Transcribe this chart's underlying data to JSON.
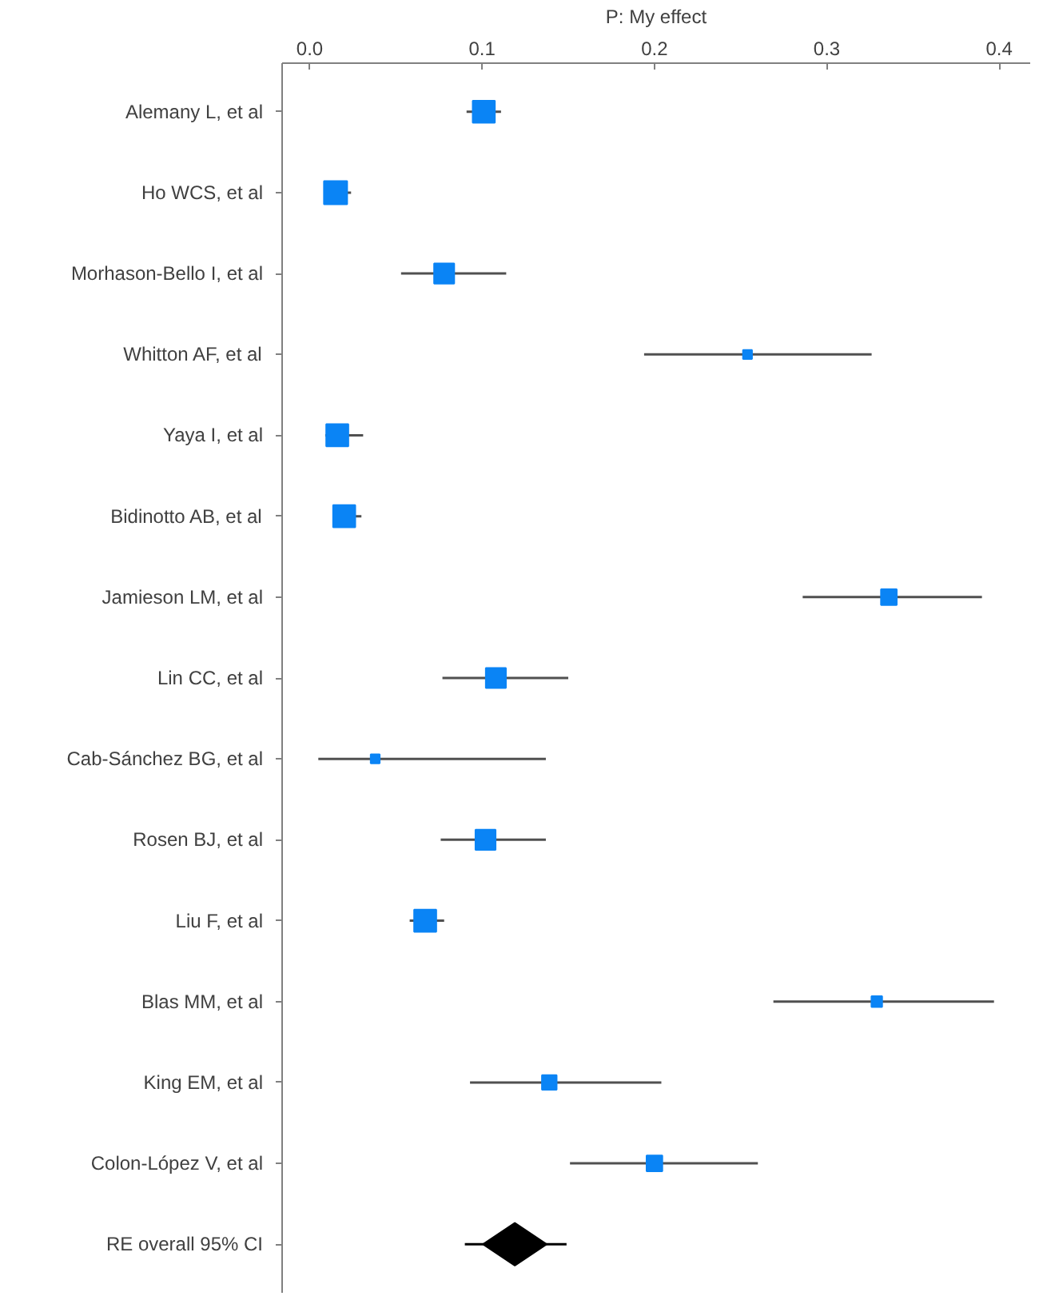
{
  "chart_data": {
    "type": "bubble",
    "orientation": "horizontal",
    "xlabel": "P: My effect",
    "categories": [
      "Alemany L, et al",
      "Ho WCS, et al",
      "Morhason-Bello I, et al",
      "Whitton AF, et al",
      "Yaya I, et al",
      "Bidinotto AB, et al",
      "Jamieson LM, et al",
      "Lin CC, et al",
      "Cab-Sánchez BG, et al",
      "Rosen BJ, et al",
      "Liu F, et al",
      "Blas MM, et al",
      "King EM, et al",
      "Colon-López V, et al",
      "RE overall 95% CI"
    ],
    "xlim": [
      -0.016,
      0.418
    ],
    "xticks": [
      {
        "value": 0,
        "label": "0.0"
      },
      0.1,
      0.2,
      0.3,
      0.4
    ],
    "grid": false,
    "marker": "square",
    "series": [
      {
        "color": "#0a84f5",
        "values": [
          0.101,
          0.015,
          0.078,
          0.254,
          0.016,
          0.02,
          0.336,
          0.108,
          0.038,
          0.102,
          0.067,
          0.329,
          0.139,
          0.2,
          null
        ],
        "sizes": [
          0.91,
          1,
          0.75,
          0.15,
          0.91,
          0.91,
          0.46,
          0.75,
          0.15,
          0.75,
          0.91,
          0.21,
          0.4,
          0.46,
          null
        ],
        "errors": [
          [
            0.091,
            0.111
          ],
          [
            0.009,
            0.024
          ],
          [
            0.053,
            0.114
          ],
          [
            0.194,
            0.326
          ],
          [
            0.009,
            0.031
          ],
          [
            0.014,
            0.03
          ],
          [
            0.286,
            0.39
          ],
          [
            0.077,
            0.15
          ],
          [
            0.005,
            0.137
          ],
          [
            0.076,
            0.137
          ],
          [
            0.058,
            0.078
          ],
          [
            0.269,
            0.397
          ],
          [
            0.093,
            0.204
          ],
          [
            0.151,
            0.26
          ],
          null
        ]
      },
      {
        "type": "scatter",
        "marker": "diamond",
        "color": "#000000",
        "values": [
          null,
          null,
          null,
          null,
          null,
          null,
          null,
          null,
          null,
          null,
          null,
          null,
          null,
          null,
          0.119
        ],
        "errors": [
          null,
          null,
          null,
          null,
          null,
          null,
          null,
          null,
          null,
          null,
          null,
          null,
          null,
          null,
          [
            0.09,
            0.149
          ]
        ]
      }
    ]
  }
}
